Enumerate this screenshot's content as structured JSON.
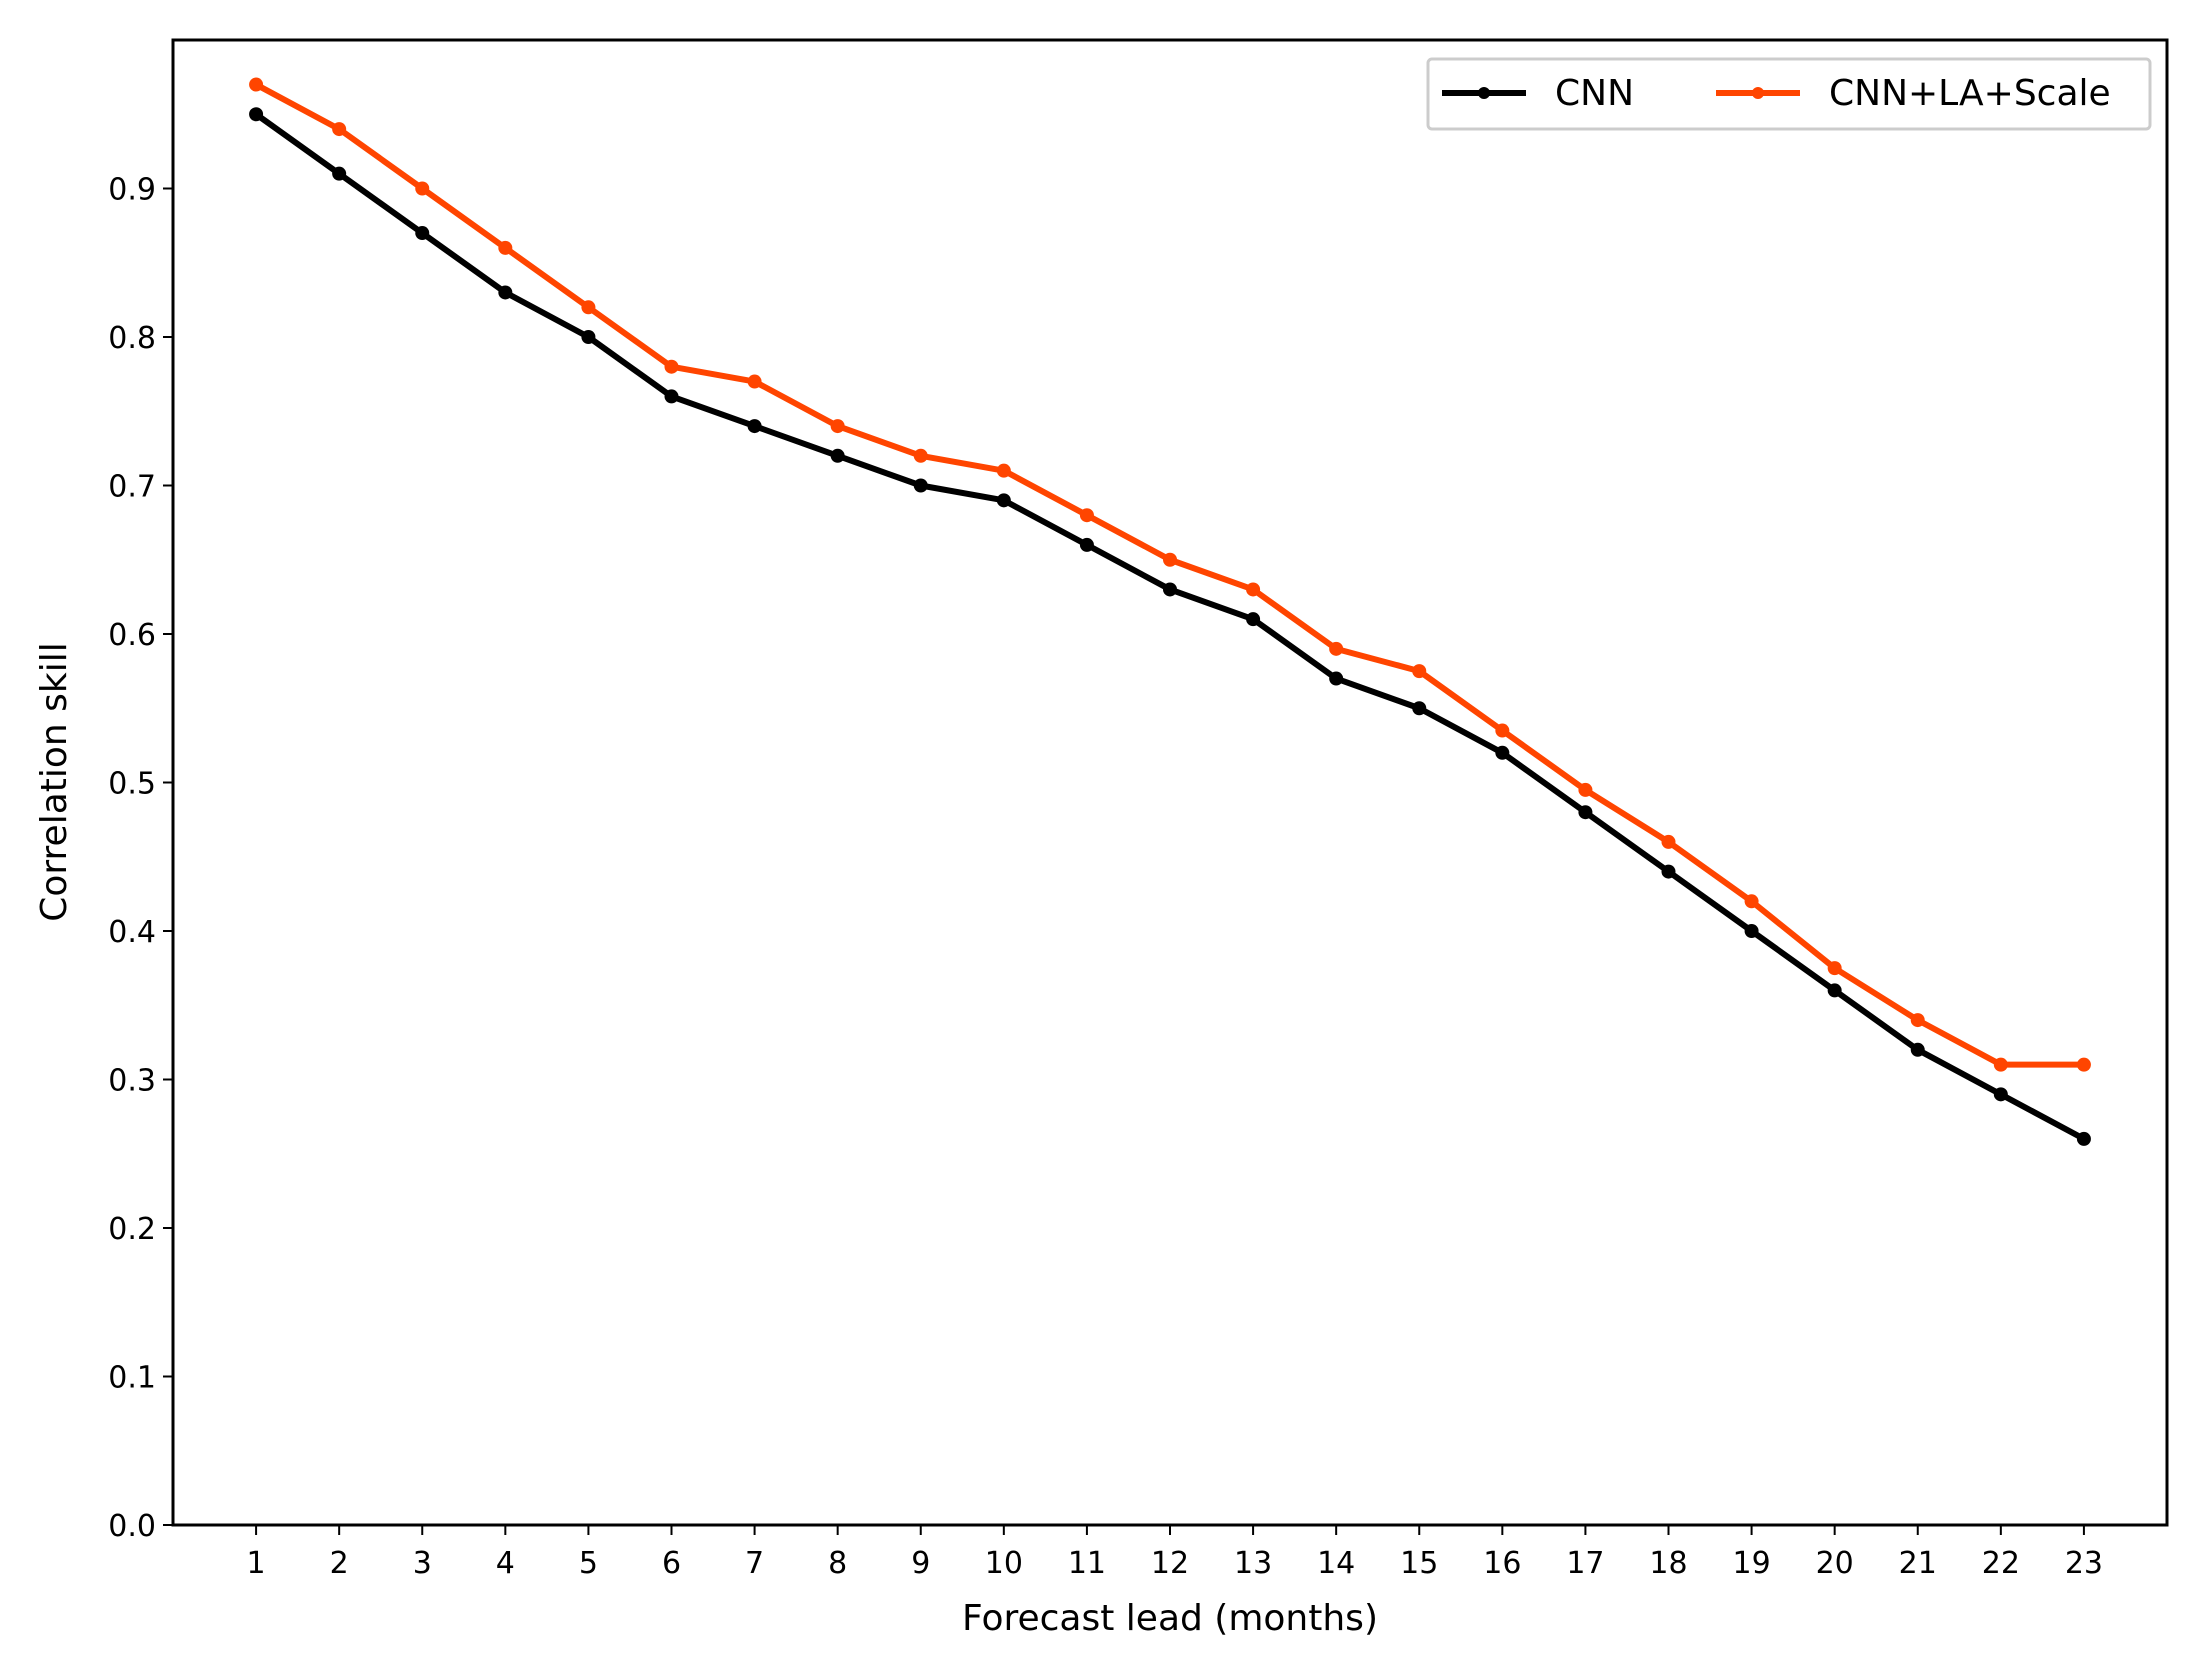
{
  "chart_data": {
    "type": "line",
    "title": "",
    "xlabel": "Forecast lead (months)",
    "ylabel": "Correlation skill",
    "x": [
      1,
      2,
      3,
      4,
      5,
      6,
      7,
      8,
      9,
      10,
      11,
      12,
      13,
      14,
      15,
      16,
      17,
      18,
      19,
      20,
      21,
      22,
      23
    ],
    "xlim": [
      0,
      24
    ],
    "ylim": [
      0,
      1
    ],
    "yticks": [
      0.0,
      0.1,
      0.2,
      0.3,
      0.4,
      0.5,
      0.6,
      0.7,
      0.8,
      0.9
    ],
    "ytick_labels": [
      "0.0",
      "0.1",
      "0.2",
      "0.3",
      "0.4",
      "0.5",
      "0.6",
      "0.7",
      "0.8",
      "0.9"
    ],
    "grid": false,
    "legend_position": "top-right",
    "series": [
      {
        "name": "CNN",
        "color": "#000000",
        "marker": "circle",
        "values": [
          0.95,
          0.91,
          0.87,
          0.83,
          0.8,
          0.76,
          0.74,
          0.72,
          0.7,
          0.69,
          0.66,
          0.63,
          0.61,
          0.57,
          0.55,
          0.52,
          0.48,
          0.44,
          0.4,
          0.36,
          0.32,
          0.29,
          0.26
        ]
      },
      {
        "name": "CNN+LA+Scale",
        "color": "#ff4500",
        "marker": "circle",
        "values": [
          0.97,
          0.94,
          0.9,
          0.86,
          0.82,
          0.78,
          0.77,
          0.74,
          0.72,
          0.71,
          0.68,
          0.65,
          0.63,
          0.59,
          0.575,
          0.535,
          0.495,
          0.46,
          0.42,
          0.375,
          0.34,
          0.31,
          0.31
        ]
      }
    ]
  }
}
